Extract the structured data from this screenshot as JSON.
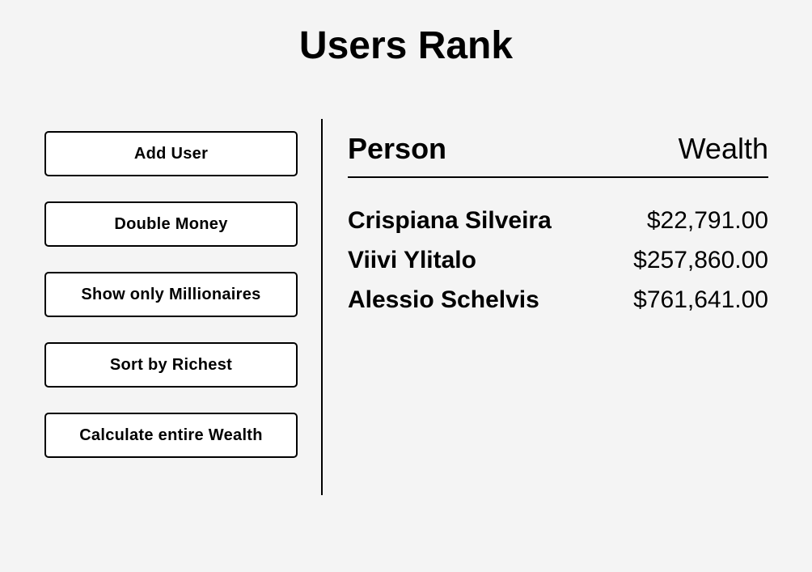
{
  "header": {
    "title": "Users Rank"
  },
  "controls": {
    "add_user": "Add User",
    "double_money": "Double Money",
    "show_millionaires": "Show only Millionaires",
    "sort_richest": "Sort by Richest",
    "calculate_wealth": "Calculate entire Wealth"
  },
  "table": {
    "columns": {
      "person": "Person",
      "wealth": "Wealth"
    },
    "rows": [
      {
        "name": "Crispiana Silveira",
        "wealth": "$22,791.00"
      },
      {
        "name": "Viivi Ylitalo",
        "wealth": "$257,860.00"
      },
      {
        "name": "Alessio Schelvis",
        "wealth": "$761,641.00"
      }
    ]
  }
}
